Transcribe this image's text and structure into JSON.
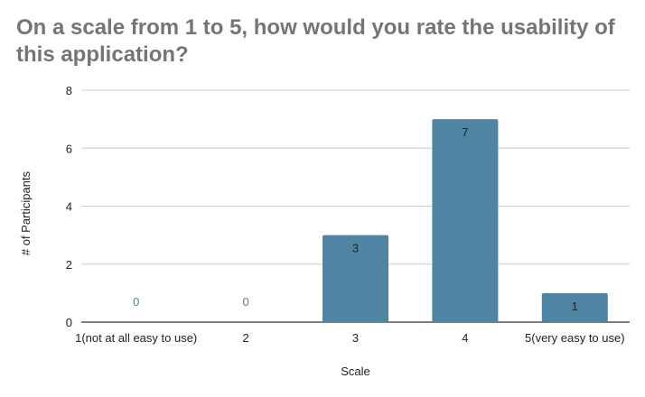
{
  "chart_data": {
    "type": "bar",
    "title": "On a scale from 1 to 5,  how would you rate the usability of this application?",
    "xlabel": "Scale",
    "ylabel": "# of  Participants",
    "categories": [
      "1(not at all easy to use)",
      "2",
      "3",
      "4",
      "5(very easy to use)"
    ],
    "values": [
      0,
      0,
      3,
      7,
      1
    ],
    "ylim": [
      0,
      8
    ],
    "yticks": [
      0,
      2,
      4,
      6,
      8
    ],
    "grid": true,
    "legend": "none",
    "colors": {
      "bar": "#4f84a3",
      "zero_label": "#4f84a3",
      "bar_label": "#222222",
      "grid": "#cccccc",
      "axis": "#333333"
    }
  }
}
